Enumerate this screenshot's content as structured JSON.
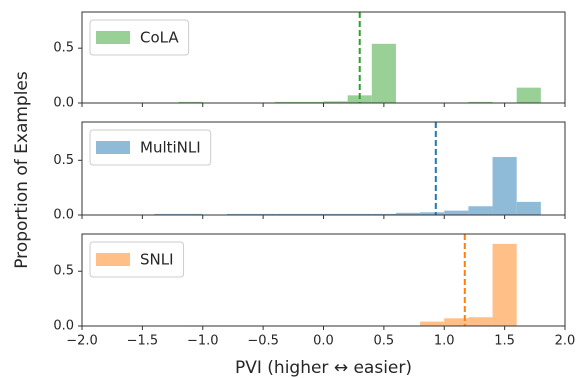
{
  "chart_data": [
    {
      "type": "histogram",
      "color": "#98d095",
      "line_color": "#2ca02c",
      "legend": "upper left",
      "series": [
        {
          "name": "CoLA",
          "values": [
            0,
            0.01,
            0,
            0,
            0,
            0.01,
            0.01,
            0.015,
            0.07,
            0.54,
            0,
            0,
            0,
            0.01,
            0,
            0.14
          ]
        }
      ],
      "bins": [
        -1.4,
        -1.2,
        -1.0,
        -0.8,
        -0.6,
        -0.4,
        -0.2,
        0,
        0.2,
        0.4,
        0.6,
        0.8,
        1.0,
        1.2,
        1.4,
        1.6,
        1.8
      ],
      "vline": 0.3,
      "xlim": [
        -2,
        2
      ],
      "ylim": [
        0,
        0.83
      ],
      "yticks": [
        {
          "value": 0,
          "label": "0.0"
        },
        {
          "value": 0.5,
          "label": "0.5"
        }
      ]
    },
    {
      "type": "histogram",
      "color": "#8fbbd9",
      "line_color": "#1f77b4",
      "legend": "upper left",
      "ylabel": "Proportion of Examples",
      "series": [
        {
          "name": "MultiNLI",
          "values": [
            0.01,
            0.01,
            0,
            0.01,
            0.01,
            0.01,
            0.01,
            0.01,
            0.01,
            0.01,
            0.02,
            0.025,
            0.04,
            0.08,
            0.53,
            0.12
          ]
        }
      ],
      "bins": [
        -1.4,
        -1.2,
        -1.0,
        -0.8,
        -0.6,
        -0.4,
        -0.2,
        0,
        0.2,
        0.4,
        0.6,
        0.8,
        1.0,
        1.2,
        1.4,
        1.6,
        1.8
      ],
      "vline": 0.93,
      "xlim": [
        -2,
        2
      ],
      "ylim": [
        0,
        0.85
      ],
      "yticks": [
        {
          "value": 0,
          "label": "0.0"
        },
        {
          "value": 0.5,
          "label": "0.5"
        }
      ]
    },
    {
      "type": "histogram",
      "color": "#ffbf86",
      "line_color": "#ff7f0e",
      "legend": "upper left",
      "xlabel": "PVI (higher ↔ easier)",
      "series": [
        {
          "name": "SNLI",
          "values": [
            0,
            0.005,
            0.005,
            0.005,
            0.005,
            0.005,
            0.005,
            0.005,
            0.005,
            0.005,
            0.005,
            0.04,
            0.07,
            0.08,
            0.75,
            0
          ]
        }
      ],
      "bins": [
        -1.4,
        -1.2,
        -1.0,
        -0.8,
        -0.6,
        -0.4,
        -0.2,
        0,
        0.2,
        0.4,
        0.6,
        0.8,
        1.0,
        1.2,
        1.4,
        1.6,
        1.8
      ],
      "vline": 1.17,
      "xlim": [
        -2,
        2
      ],
      "ylim": [
        0,
        0.84
      ],
      "yticks": [
        {
          "value": 0,
          "label": "0.0"
        },
        {
          "value": 0.5,
          "label": "0.5"
        }
      ],
      "xticks": [
        {
          "value": -2,
          "label": "−2.0"
        },
        {
          "value": -1.5,
          "label": "−1.5"
        },
        {
          "value": -1,
          "label": "−1.0"
        },
        {
          "value": -0.5,
          "label": "−0.5"
        },
        {
          "value": 0,
          "label": "0.0"
        },
        {
          "value": 0.5,
          "label": "0.5"
        },
        {
          "value": 1,
          "label": "1.0"
        },
        {
          "value": 1.5,
          "label": "1.5"
        },
        {
          "value": 2,
          "label": "2.0"
        }
      ]
    }
  ]
}
